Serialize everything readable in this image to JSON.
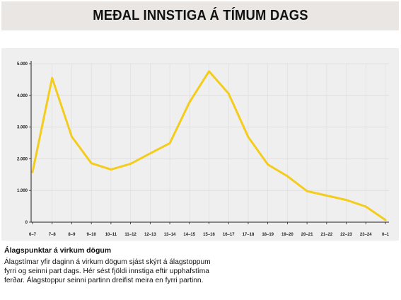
{
  "header": {
    "title": "MEÐAL INNSTIGA Á TÍMUM DAGS"
  },
  "caption": {
    "heading": "Álagspunktar á virkum dögum",
    "text": "Álagstímar yfir daginn á virkum dögum sjást skýrt á álagstoppum fyrri og seinni part dags. Hér sést fjöldi innstiga eftir upphafstíma ferðar. Álagstoppur seinni partinn dreifist meira en fyrri partinn."
  },
  "colors": {
    "line": "#f4cc1c",
    "panel": "#efefef",
    "grid": "#dcdcdc",
    "axis": "#222222"
  },
  "chart_data": {
    "type": "line",
    "title": "MEÐAL INNSTIGA Á TÍMUM DAGS",
    "xlabel": "",
    "ylabel": "",
    "categories": [
      "6–7",
      "7–8",
      "8–9",
      "9–10",
      "10–11",
      "11–12",
      "12–13",
      "13–14",
      "14–15",
      "15–16",
      "16–17",
      "17–18",
      "18–19",
      "19–20",
      "20–21",
      "21–22",
      "22–23",
      "23–24",
      "0–1"
    ],
    "values": [
      1580,
      4550,
      2700,
      1860,
      1660,
      1840,
      2170,
      2490,
      3780,
      4760,
      4060,
      2690,
      1820,
      1450,
      980,
      840,
      700,
      490,
      70
    ],
    "ylim": [
      0,
      5000
    ],
    "yticks": [
      0,
      1000,
      2000,
      3000,
      4000,
      5000
    ],
    "ytick_labels": [
      "0",
      "1.000",
      "2.000",
      "3.000",
      "4.000",
      "5.000"
    ],
    "grid": true,
    "legend": "none"
  }
}
